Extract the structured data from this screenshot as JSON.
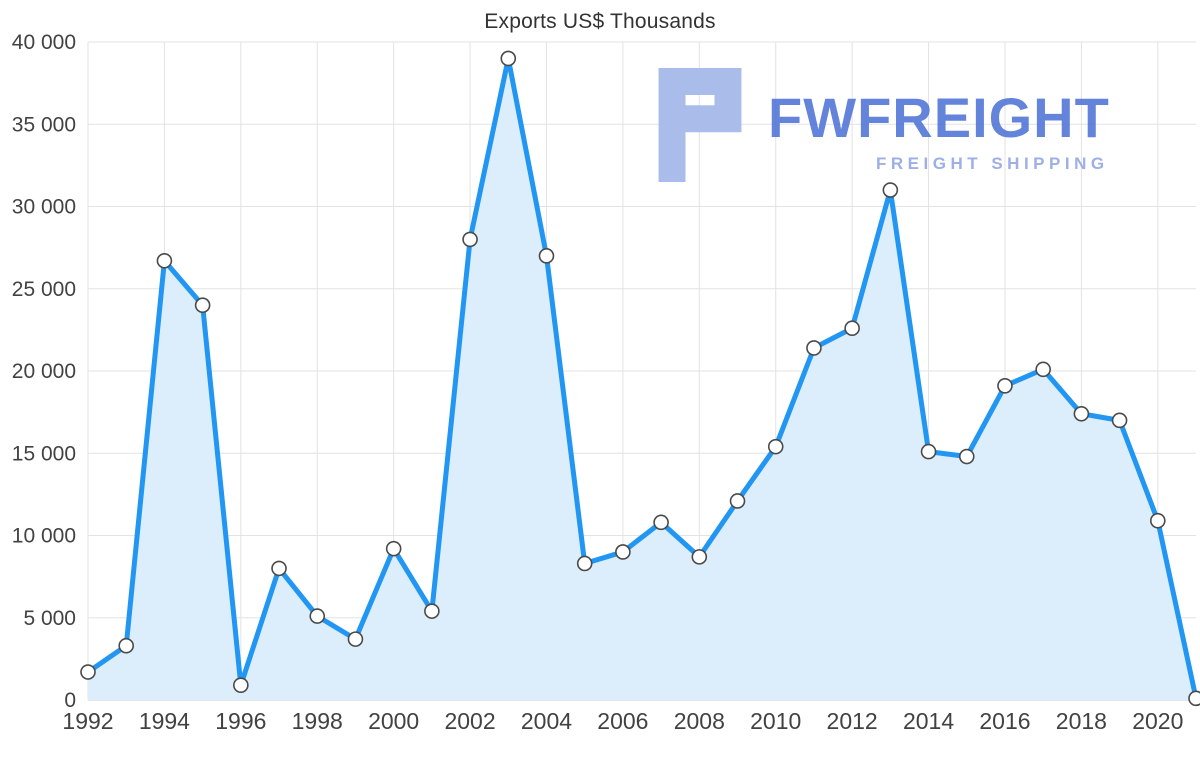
{
  "title": "Exports US$ Thousands",
  "watermark": {
    "brand": "FWFREIGHT",
    "subtitle": "FREIGHT SHIPPING",
    "logo_icon": "fwfreight-blocks-logo",
    "brand_color": "#4a6fd6",
    "subtitle_color": "#93a7e4",
    "logo_color": "#aabdea"
  },
  "chart_data": {
    "type": "area",
    "title": "Exports US$ Thousands",
    "x": [
      1992,
      1993,
      1994,
      1995,
      1996,
      1997,
      1998,
      1999,
      2000,
      2001,
      2002,
      2003,
      2004,
      2005,
      2006,
      2007,
      2008,
      2009,
      2010,
      2011,
      2012,
      2013,
      2014,
      2015,
      2016,
      2017,
      2018,
      2019,
      2020,
      2021
    ],
    "values": [
      1700,
      3300,
      26700,
      24000,
      900,
      8000,
      5100,
      3700,
      9200,
      5400,
      28000,
      39000,
      27000,
      8300,
      9000,
      10800,
      8700,
      12100,
      15400,
      21400,
      22600,
      31000,
      15100,
      14800,
      19100,
      20100,
      17400,
      17000,
      10900,
      100
    ],
    "x_tick_labels": [
      "1992",
      "1994",
      "1996",
      "1998",
      "2000",
      "2002",
      "2004",
      "2006",
      "2008",
      "2010",
      "2012",
      "2014",
      "2016",
      "2018",
      "2020"
    ],
    "y_tick_labels": [
      "0",
      "5 000",
      "10 000",
      "15 000",
      "20 000",
      "25 000",
      "30 000",
      "35 000",
      "40 000"
    ],
    "xlim": [
      1992,
      2021
    ],
    "ylim": [
      0,
      40000
    ],
    "y_step": 5000,
    "grid": true,
    "legend": "none",
    "line_color": "#2196f3",
    "area_color": "#dcedfb",
    "marker_fill": "#ffffff",
    "marker_stroke": "#4a4a4a",
    "grid_color": "#e3e3e3",
    "axis_color": "#cccccc"
  }
}
